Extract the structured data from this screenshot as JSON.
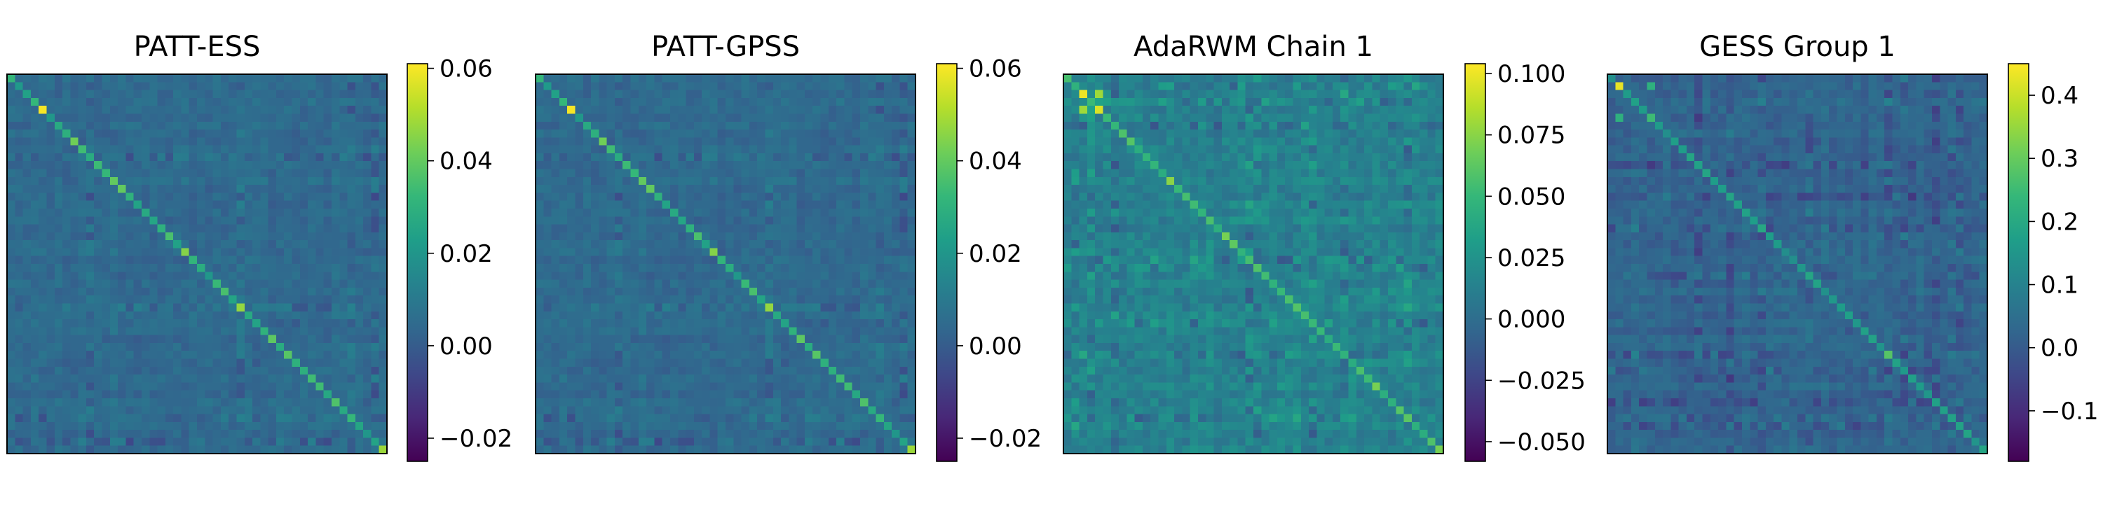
{
  "figure": {
    "background": "#ffffff",
    "colormap": "viridis"
  },
  "chart_data": [
    {
      "type": "heatmap",
      "title": "PATT-ESS",
      "matrix_size": 48,
      "colorbar": {
        "ticks": [
          "0.06",
          "0.04",
          "0.02",
          "0.00",
          "−0.02"
        ],
        "tick_values": [
          0.06,
          0.04,
          0.02,
          0.0,
          -0.02
        ],
        "vmin": -0.025,
        "vmax": 0.061
      },
      "pattern": {
        "diag": [
          0.01,
          0.04
        ],
        "off": [
          -0.004,
          0.014
        ],
        "bands": 4,
        "seed": 11
      },
      "hotspots": [
        {
          "i": 4,
          "j": 4,
          "v": 0.06
        },
        {
          "i": 8,
          "j": 8,
          "v": 0.042
        },
        {
          "i": 22,
          "j": 22,
          "v": 0.045
        },
        {
          "i": 29,
          "j": 29,
          "v": 0.047
        },
        {
          "i": 47,
          "j": 47,
          "v": 0.048
        }
      ]
    },
    {
      "type": "heatmap",
      "title": "PATT-GPSS",
      "matrix_size": 48,
      "colorbar": {
        "ticks": [
          "0.06",
          "0.04",
          "0.02",
          "0.00",
          "−0.02"
        ],
        "tick_values": [
          0.06,
          0.04,
          0.02,
          0.0,
          -0.02
        ],
        "vmin": -0.025,
        "vmax": 0.061
      },
      "pattern": {
        "diag": [
          0.01,
          0.04
        ],
        "off": [
          -0.004,
          0.014
        ],
        "bands": 4,
        "seed": 11
      },
      "hotspots": [
        {
          "i": 4,
          "j": 4,
          "v": 0.06
        },
        {
          "i": 8,
          "j": 8,
          "v": 0.042
        },
        {
          "i": 22,
          "j": 22,
          "v": 0.045
        },
        {
          "i": 29,
          "j": 29,
          "v": 0.047
        },
        {
          "i": 47,
          "j": 47,
          "v": 0.048
        }
      ]
    },
    {
      "type": "heatmap",
      "title": "AdaRWM Chain 1",
      "matrix_size": 48,
      "colorbar": {
        "ticks": [
          "0.100",
          "0.075",
          "0.050",
          "0.025",
          "0.000",
          "−0.025",
          "−0.050"
        ],
        "tick_values": [
          0.1,
          0.075,
          0.05,
          0.025,
          0.0,
          -0.025,
          -0.05
        ],
        "vmin": -0.058,
        "vmax": 0.104
      },
      "pattern": {
        "diag": [
          0.03,
          0.065
        ],
        "off": [
          -0.01,
          0.04
        ],
        "bands": 9,
        "seed": 23
      },
      "hotspots": [
        {
          "i": 2,
          "j": 2,
          "v": 0.1
        },
        {
          "i": 4,
          "j": 4,
          "v": 0.095
        },
        {
          "i": 2,
          "j": 4,
          "v": 0.08
        },
        {
          "i": 4,
          "j": 2,
          "v": 0.08
        },
        {
          "i": 13,
          "j": 13,
          "v": 0.075
        },
        {
          "i": 20,
          "j": 20,
          "v": 0.07
        },
        {
          "i": 39,
          "j": 39,
          "v": 0.07
        },
        {
          "i": 47,
          "j": 47,
          "v": 0.07
        }
      ]
    },
    {
      "type": "heatmap",
      "title": "GESS Group 1",
      "matrix_size": 48,
      "colorbar": {
        "ticks": [
          "0.4",
          "0.3",
          "0.2",
          "0.1",
          "0.0",
          "−0.1"
        ],
        "tick_values": [
          0.4,
          0.3,
          0.2,
          0.1,
          0.0,
          -0.1
        ],
        "vmin": -0.18,
        "vmax": 0.45
      },
      "pattern": {
        "diag": [
          0.1,
          0.2
        ],
        "off": [
          -0.05,
          0.1
        ],
        "bands": 11,
        "seed": 37
      },
      "hotspots": [
        {
          "i": 1,
          "j": 1,
          "v": 0.43
        },
        {
          "i": 5,
          "j": 5,
          "v": 0.25
        },
        {
          "i": 35,
          "j": 35,
          "v": 0.28
        },
        {
          "i": 5,
          "j": 1,
          "v": 0.22
        }
      ]
    }
  ]
}
